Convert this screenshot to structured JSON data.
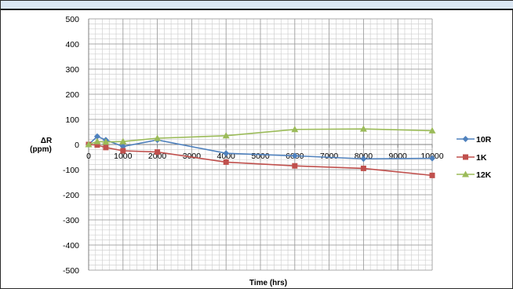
{
  "chart_data": {
    "type": "line",
    "title": "",
    "xlabel": "Time (hrs)",
    "ylabel_line1": "ΔR",
    "ylabel_line2": "(ppm)",
    "xlim": [
      0,
      10000
    ],
    "ylim": [
      -500,
      500
    ],
    "x_ticks": [
      0,
      1000,
      2000,
      3000,
      4000,
      5000,
      6000,
      7000,
      8000,
      9000,
      10000
    ],
    "y_ticks": [
      -500,
      -400,
      -300,
      -200,
      -100,
      0,
      100,
      200,
      300,
      400,
      500
    ],
    "grid": true,
    "legend_position": "right",
    "series": [
      {
        "name": "10R",
        "color": "#4f81bd",
        "marker": "diamond",
        "points": [
          [
            0,
            0
          ],
          [
            250,
            32
          ],
          [
            500,
            18
          ],
          [
            1000,
            -8
          ],
          [
            2000,
            18
          ],
          [
            4000,
            -35
          ],
          [
            6000,
            -45
          ],
          [
            8000,
            -57
          ],
          [
            10000,
            -55
          ]
        ]
      },
      {
        "name": "1K",
        "color": "#c0504d",
        "marker": "square",
        "points": [
          [
            0,
            0
          ],
          [
            250,
            -2
          ],
          [
            500,
            -12
          ],
          [
            1000,
            -25
          ],
          [
            2000,
            -30
          ],
          [
            4000,
            -70
          ],
          [
            6000,
            -85
          ],
          [
            8000,
            -95
          ],
          [
            10000,
            -123
          ]
        ]
      },
      {
        "name": "12K",
        "color": "#9bbb59",
        "marker": "triangle",
        "points": [
          [
            0,
            0
          ],
          [
            250,
            12
          ],
          [
            500,
            10
          ],
          [
            1000,
            12
          ],
          [
            2000,
            25
          ],
          [
            4000,
            35
          ],
          [
            6000,
            60
          ],
          [
            8000,
            62
          ],
          [
            10000,
            55
          ]
        ]
      }
    ]
  }
}
